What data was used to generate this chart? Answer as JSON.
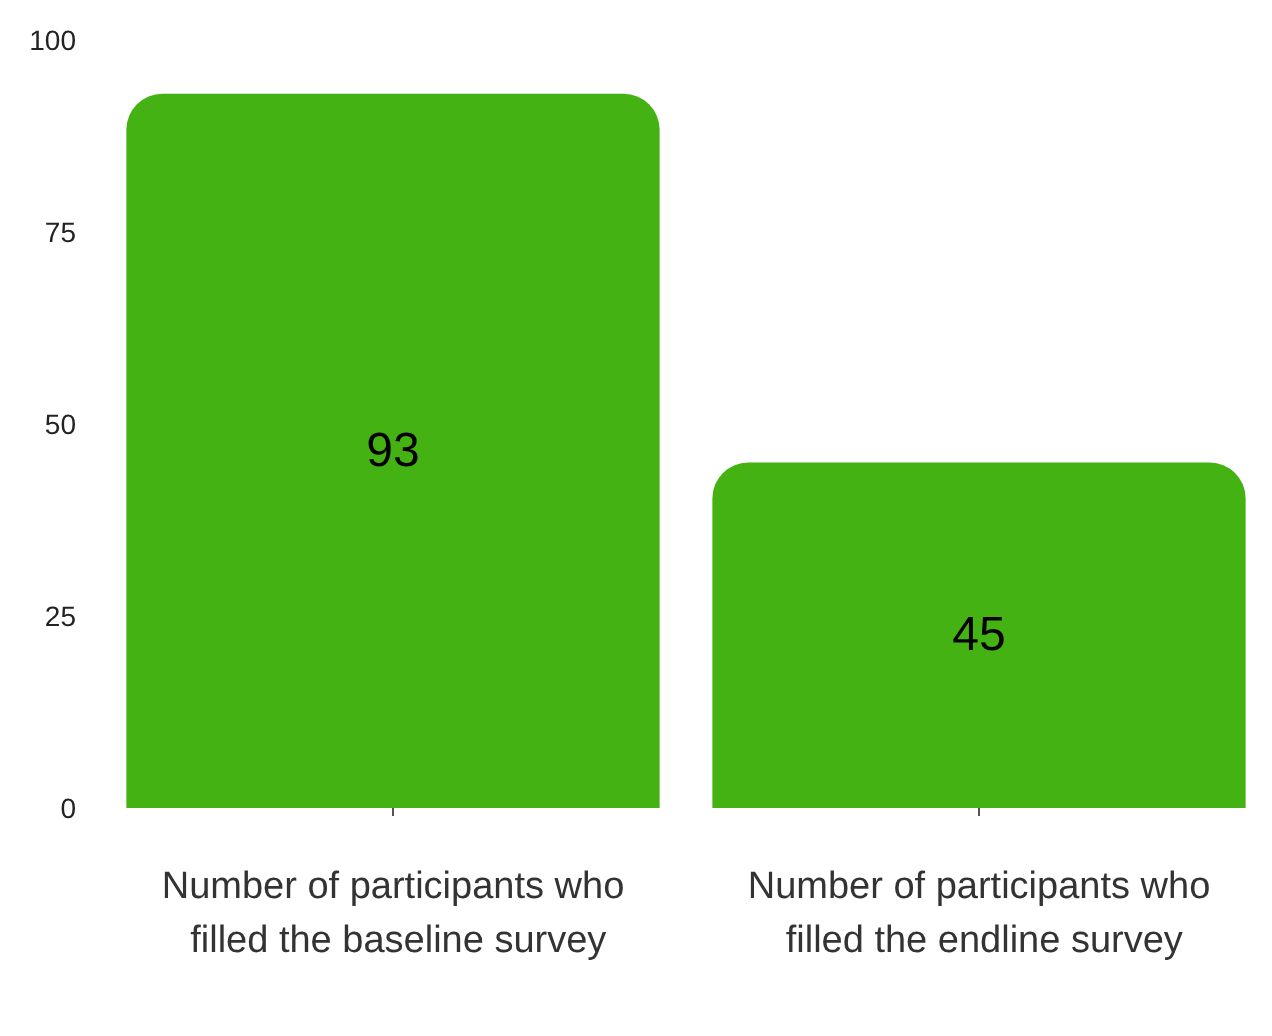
{
  "chart_data": {
    "type": "bar",
    "categories": [
      "Number of participants who filled the baseline survey",
      "Number of participants who filled the endline survey"
    ],
    "values": [
      93,
      45
    ],
    "color": "#44b212",
    "ylim": [
      0,
      100
    ],
    "yticks": [
      0,
      25,
      50,
      75,
      100
    ],
    "data_labels": true,
    "grid": false
  }
}
